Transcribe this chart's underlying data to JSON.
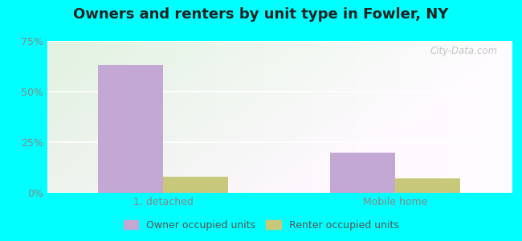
{
  "title": "Owners and renters by unit type in Fowler, NY",
  "categories": [
    "1, detached",
    "Mobile home"
  ],
  "owner_values": [
    63,
    20
  ],
  "renter_values": [
    8,
    7
  ],
  "owner_color": "#c4a8d4",
  "renter_color": "#c8c87a",
  "ylim": [
    0,
    75
  ],
  "yticks": [
    0,
    25,
    50,
    75
  ],
  "yticklabels": [
    "0%",
    "25%",
    "50%",
    "75%"
  ],
  "title_fontsize": 13,
  "tick_fontsize": 9,
  "legend_labels": [
    "Owner occupied units",
    "Renter occupied units"
  ],
  "background_outer": "#00ffff",
  "bar_width": 0.28,
  "watermark": "City-Data.com"
}
